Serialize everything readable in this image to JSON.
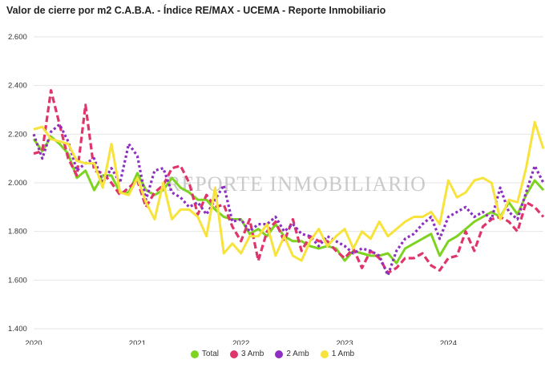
{
  "chart_data": {
    "type": "line",
    "title": "Valor de cierre por m2 C.A.B.A. - Índice RE/MAX - UCEMA - Reporte Inmobiliario",
    "xlabel": "",
    "ylabel": "",
    "watermark": "REPORTE INMOBILIARIO",
    "ylim": [
      1400,
      2600
    ],
    "yticks": [
      "1.400",
      "1.600",
      "1.800",
      "2.000",
      "2.200",
      "2.400",
      "2.600"
    ],
    "xlim": [
      0,
      59
    ],
    "xticks": [
      {
        "label": "2020",
        "x": 0
      },
      {
        "label": "2021",
        "x": 12
      },
      {
        "label": "2022",
        "x": 24
      },
      {
        "label": "2023",
        "x": 36
      },
      {
        "label": "2024",
        "x": 48
      }
    ],
    "grid": true,
    "legend_position": "bottom",
    "series": [
      {
        "name": "Total",
        "color": "#7ed321",
        "dash": "solid",
        "values": [
          2180,
          2130,
          2190,
          2160,
          2120,
          2020,
          2050,
          1970,
          2030,
          2030,
          1960,
          1960,
          2040,
          1970,
          1950,
          1970,
          2020,
          1980,
          1960,
          1930,
          1930,
          1890,
          1860,
          1850,
          1850,
          1790,
          1810,
          1780,
          1830,
          1780,
          1760,
          1760,
          1740,
          1730,
          1740,
          1730,
          1680,
          1720,
          1710,
          1700,
          1700,
          1710,
          1670,
          1730,
          1750,
          1770,
          1790,
          1700,
          1760,
          1780,
          1810,
          1840,
          1860,
          1880,
          1860,
          1920,
          1870,
          1950,
          2010,
          1970
        ]
      },
      {
        "name": "3 Amb",
        "color": "#e0356a",
        "dash": "8,4",
        "values": [
          2120,
          2130,
          2380,
          2240,
          2100,
          2030,
          2320,
          2050,
          2040,
          2000,
          1950,
          1980,
          2010,
          1900,
          1960,
          1990,
          2060,
          2070,
          2000,
          1870,
          1950,
          1900,
          1910,
          1820,
          1760,
          1850,
          1680,
          1800,
          1840,
          1760,
          1850,
          1720,
          1780,
          1760,
          1760,
          1720,
          1690,
          1730,
          1650,
          1720,
          1690,
          1630,
          1650,
          1690,
          1690,
          1710,
          1660,
          1640,
          1690,
          1700,
          1800,
          1720,
          1820,
          1850,
          1860,
          1840,
          1800,
          1920,
          1900,
          1860
        ]
      },
      {
        "name": "2 Amb",
        "color": "#8e2ec2",
        "dash": "3,3",
        "values": [
          2200,
          2100,
          2210,
          2240,
          2170,
          2050,
          2080,
          2100,
          2000,
          2060,
          2000,
          2160,
          2110,
          1930,
          2050,
          2060,
          1960,
          1940,
          1900,
          1920,
          1870,
          1930,
          1990,
          1840,
          1850,
          1800,
          1830,
          1830,
          1860,
          1800,
          1830,
          1790,
          1780,
          1740,
          1780,
          1760,
          1740,
          1710,
          1730,
          1720,
          1700,
          1620,
          1720,
          1770,
          1790,
          1830,
          1860,
          1770,
          1860,
          1880,
          1900,
          1860,
          1880,
          1850,
          1980,
          1880,
          1850,
          1960,
          2070,
          2000
        ]
      },
      {
        "name": "1 Amb",
        "color": "#f7e33b",
        "dash": "solid",
        "values": [
          2220,
          2230,
          2180,
          2170,
          2160,
          2090,
          2080,
          2080,
          1980,
          2160,
          1960,
          1950,
          2020,
          1920,
          1850,
          2000,
          1850,
          1890,
          1890,
          1860,
          1780,
          1980,
          1710,
          1750,
          1710,
          1780,
          1780,
          1830,
          1700,
          1780,
          1700,
          1680,
          1760,
          1810,
          1740,
          1780,
          1810,
          1730,
          1800,
          1770,
          1840,
          1780,
          1810,
          1840,
          1860,
          1860,
          1880,
          1830,
          2010,
          1940,
          1960,
          2010,
          2020,
          2000,
          1850,
          1930,
          1920,
          2060,
          2250,
          2140
        ]
      }
    ]
  }
}
